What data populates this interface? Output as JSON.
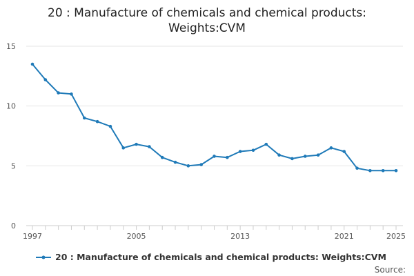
{
  "chart_data": {
    "type": "line",
    "title": "20 : Manufacture of chemicals and chemical products:",
    "title_line2": "Weights:CVM",
    "xlabel": "",
    "ylabel": "",
    "ylim": [
      0,
      15
    ],
    "y_ticks": [
      0,
      5,
      10,
      15
    ],
    "x_tick_labels": [
      1997,
      2005,
      2013,
      2021,
      2025
    ],
    "grid": true,
    "legend_position": "bottom-center",
    "series": [
      {
        "name": "20 : Manufacture of chemicals and chemical products: Weights:CVM",
        "color": "#1f7ab8",
        "x": [
          1997,
          1998,
          1999,
          2000,
          2001,
          2002,
          2003,
          2004,
          2005,
          2006,
          2007,
          2008,
          2009,
          2010,
          2011,
          2012,
          2013,
          2014,
          2015,
          2016,
          2017,
          2018,
          2019,
          2020,
          2021,
          2022,
          2023,
          2024,
          2025
        ],
        "values": [
          13.5,
          12.2,
          11.1,
          11.0,
          9.0,
          8.7,
          8.3,
          6.5,
          6.8,
          6.6,
          5.7,
          5.3,
          5.0,
          5.1,
          5.8,
          5.7,
          6.2,
          6.3,
          6.8,
          5.9,
          5.6,
          5.8,
          5.9,
          6.5,
          6.2,
          4.8,
          4.6,
          4.6,
          4.6
        ]
      }
    ],
    "source_label": "Source:"
  }
}
